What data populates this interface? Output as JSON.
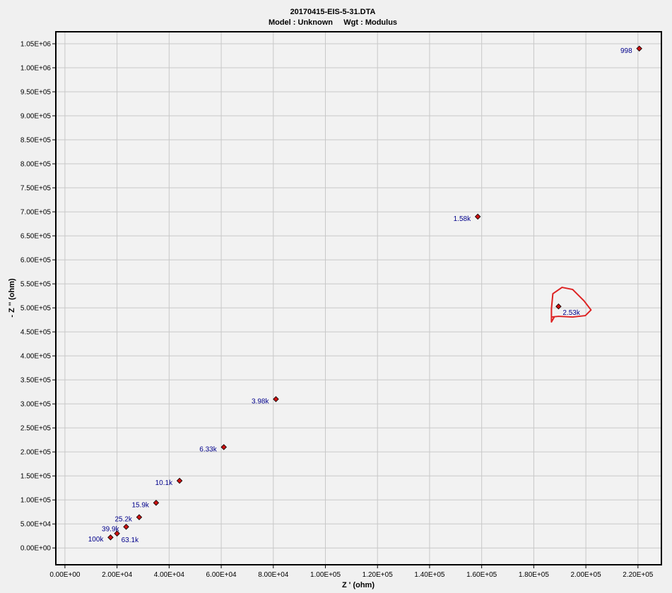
{
  "chart_data": {
    "type": "scatter",
    "title": "20170415-EIS-5-31.DTA",
    "subtitle": "Model : Unknown     Wgt : Modulus",
    "xlabel": "Z ' (ohm)",
    "ylabel": "- Z '' (ohm)",
    "xlim": [
      -3500,
      229000
    ],
    "ylim": [
      -35000,
      1075000
    ],
    "xticks": [
      0,
      20000,
      40000,
      60000,
      80000,
      100000,
      120000,
      140000,
      160000,
      180000,
      200000,
      220000
    ],
    "xtick_labels": [
      "0.00E+00",
      "2.00E+04",
      "4.00E+04",
      "6.00E+04",
      "8.00E+04",
      "1.00E+05",
      "1.20E+05",
      "1.40E+05",
      "1.60E+05",
      "1.80E+05",
      "2.00E+05",
      "2.20E+05"
    ],
    "yticks": [
      0,
      50000,
      100000,
      150000,
      200000,
      250000,
      300000,
      350000,
      400000,
      450000,
      500000,
      550000,
      600000,
      650000,
      700000,
      750000,
      800000,
      850000,
      900000,
      950000,
      1000000,
      1050000
    ],
    "ytick_labels": [
      "0.00E+00",
      "5.00E+04",
      "1.00E+05",
      "1.50E+05",
      "2.00E+05",
      "2.50E+05",
      "3.00E+05",
      "3.50E+05",
      "4.00E+05",
      "4.50E+05",
      "5.00E+05",
      "5.50E+05",
      "6.00E+05",
      "6.50E+05",
      "7.00E+05",
      "7.50E+05",
      "8.00E+05",
      "8.50E+05",
      "9.00E+05",
      "9.50E+05",
      "1.00E+06",
      "1.05E+06"
    ],
    "grid": true,
    "points": [
      {
        "x": 220500,
        "y": 1040000,
        "label": "998",
        "label_side": "left"
      },
      {
        "x": 158500,
        "y": 690000,
        "label": "1.58k",
        "label_side": "left"
      },
      {
        "x": 189500,
        "y": 503000,
        "label": "2.53k",
        "label_side": "right-below"
      },
      {
        "x": 81000,
        "y": 310000,
        "label": "3.98k",
        "label_side": "left"
      },
      {
        "x": 61000,
        "y": 210000,
        "label": "6.33k",
        "label_side": "left"
      },
      {
        "x": 44000,
        "y": 140000,
        "label": "10.1k",
        "label_side": "left"
      },
      {
        "x": 35000,
        "y": 94000,
        "label": "15.9k",
        "label_side": "left"
      },
      {
        "x": 28500,
        "y": 64000,
        "label": "25.2k",
        "label_side": "left"
      },
      {
        "x": 23500,
        "y": 44000,
        "label": "39.9k",
        "label_side": "left"
      },
      {
        "x": 20000,
        "y": 30000,
        "label": "63.1k",
        "label_side": "right-below"
      },
      {
        "x": 17500,
        "y": 22000,
        "label": "100k",
        "label_side": "left"
      }
    ],
    "marker_color": "#cc1111",
    "label_color": "#00008b",
    "annotation": {
      "type": "hand-drawn-circle",
      "color": "#dd2222",
      "around_point_label": "2.53k"
    }
  }
}
